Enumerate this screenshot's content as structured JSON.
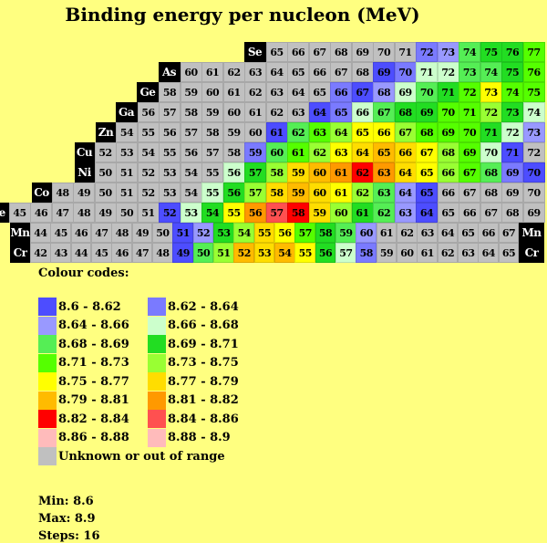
{
  "title": "Binding energy per nucleon (MeV)",
  "chart_data": {
    "type": "table",
    "rows": [
      {
        "element": "Se",
        "start": 65,
        "values": [
          65,
          66,
          67,
          68,
          69,
          70,
          71,
          72,
          73,
          74,
          75,
          76,
          77
        ],
        "codes": [
          16,
          16,
          16,
          16,
          16,
          16,
          16,
          1,
          2,
          4,
          5,
          5,
          6
        ]
      },
      {
        "element": "As",
        "start": 60,
        "values": [
          60,
          61,
          62,
          63,
          64,
          65,
          66,
          67,
          68,
          69,
          70,
          71,
          72,
          73,
          74,
          75,
          76
        ],
        "codes": [
          16,
          16,
          16,
          16,
          16,
          16,
          16,
          16,
          16,
          0,
          1,
          3,
          3,
          4,
          4,
          5,
          6
        ]
      },
      {
        "element": "Ge",
        "start": 58,
        "values": [
          58,
          59,
          60,
          61,
          62,
          63,
          64,
          65,
          66,
          67,
          68,
          69,
          70,
          71,
          72,
          73,
          74,
          75
        ],
        "codes": [
          16,
          16,
          16,
          16,
          16,
          16,
          16,
          16,
          1,
          0,
          2,
          3,
          4,
          5,
          6,
          8,
          6,
          6
        ]
      },
      {
        "element": "Ga",
        "start": 56,
        "values": [
          56,
          57,
          58,
          59,
          60,
          61,
          62,
          63,
          64,
          65,
          66,
          67,
          68,
          69,
          70,
          71,
          72,
          73,
          74
        ],
        "codes": [
          16,
          16,
          16,
          16,
          16,
          16,
          16,
          16,
          0,
          1,
          3,
          4,
          5,
          5,
          6,
          6,
          7,
          5,
          3
        ]
      },
      {
        "element": "Zn",
        "start": 54,
        "values": [
          54,
          55,
          56,
          57,
          58,
          59,
          60,
          61,
          62,
          63,
          64,
          65,
          66,
          67,
          68,
          69,
          70,
          71,
          72,
          73
        ],
        "codes": [
          16,
          16,
          16,
          16,
          16,
          16,
          16,
          0,
          4,
          6,
          7,
          8,
          8,
          7,
          6,
          6,
          6,
          5,
          3,
          2
        ]
      },
      {
        "element": "Cu",
        "start": 52,
        "values": [
          52,
          53,
          54,
          55,
          56,
          57,
          58,
          59,
          60,
          61,
          62,
          63,
          64,
          65,
          66,
          67,
          68,
          69,
          70,
          71,
          72
        ],
        "codes": [
          16,
          16,
          16,
          16,
          16,
          16,
          16,
          1,
          4,
          6,
          7,
          8,
          9,
          10,
          9,
          8,
          7,
          6,
          3,
          0,
          16
        ]
      },
      {
        "element": "Ni",
        "start": 50,
        "values": [
          50,
          51,
          52,
          53,
          54,
          55,
          56,
          57,
          58,
          59,
          60,
          61,
          62,
          63,
          64,
          65,
          66,
          67,
          68,
          69,
          70
        ],
        "codes": [
          16,
          16,
          16,
          16,
          16,
          16,
          3,
          5,
          7,
          9,
          10,
          11,
          12,
          11,
          9,
          8,
          7,
          6,
          4,
          1,
          0
        ]
      },
      {
        "element": "Co",
        "start": 48,
        "values": [
          48,
          49,
          50,
          51,
          52,
          53,
          54,
          55,
          56,
          57,
          58,
          59,
          60,
          61,
          62,
          63,
          64,
          65,
          66,
          67,
          68,
          69,
          70
        ],
        "codes": [
          16,
          16,
          16,
          16,
          16,
          16,
          16,
          3,
          5,
          7,
          9,
          10,
          9,
          8,
          7,
          4,
          2,
          0,
          16,
          16,
          16,
          16,
          16
        ]
      },
      {
        "element": "Fe",
        "start": 45,
        "values": [
          45,
          46,
          47,
          48,
          49,
          50,
          51,
          52,
          53,
          54,
          55,
          56,
          57,
          58,
          59,
          60,
          61,
          62,
          63,
          64,
          65,
          66,
          67,
          68,
          69
        ],
        "codes": [
          16,
          16,
          16,
          16,
          16,
          16,
          16,
          0,
          3,
          5,
          8,
          11,
          13,
          12,
          9,
          7,
          5,
          4,
          2,
          0,
          16,
          16,
          16,
          16,
          16
        ]
      },
      {
        "element": "Mn",
        "start": 44,
        "values": [
          44,
          45,
          46,
          47,
          48,
          49,
          50,
          51,
          52,
          53,
          54,
          55,
          56,
          57,
          58,
          59,
          60,
          61,
          62,
          63,
          64,
          65,
          66,
          67
        ],
        "codes": [
          16,
          16,
          16,
          16,
          16,
          16,
          16,
          0,
          2,
          5,
          7,
          9,
          8,
          6,
          5,
          4,
          2,
          16,
          16,
          16,
          16,
          16,
          16,
          16
        ],
        "right_label": "Mn"
      },
      {
        "element": "Cr",
        "start": 42,
        "values": [
          42,
          43,
          44,
          45,
          46,
          47,
          48,
          49,
          50,
          51,
          52,
          53,
          54,
          55,
          56,
          57,
          58,
          59,
          60,
          61,
          62,
          63,
          64,
          65
        ],
        "codes": [
          16,
          16,
          16,
          16,
          16,
          16,
          16,
          0,
          4,
          7,
          10,
          9,
          10,
          8,
          5,
          3,
          1,
          16,
          16,
          16,
          16,
          16,
          16,
          16
        ],
        "right_label": "Cr"
      }
    ]
  },
  "legend": {
    "title": "Colour codes:",
    "items": [
      {
        "label": "8.6 - 8.62",
        "color": "#4d4dff"
      },
      {
        "label": "8.62 - 8.64",
        "color": "#7a7aff"
      },
      {
        "label": "8.64 - 8.66",
        "color": "#9999ff"
      },
      {
        "label": "8.66 - 8.68",
        "color": "#ccffcc"
      },
      {
        "label": "8.68 - 8.69",
        "color": "#55ee55"
      },
      {
        "label": "8.69 - 8.71",
        "color": "#22dd22"
      },
      {
        "label": "8.71 - 8.73",
        "color": "#55ff00"
      },
      {
        "label": "8.73 - 8.75",
        "color": "#99ff33"
      },
      {
        "label": "8.75 - 8.77",
        "color": "#ffff00"
      },
      {
        "label": "8.77 - 8.79",
        "color": "#ffdd00"
      },
      {
        "label": "8.79 - 8.81",
        "color": "#ffbb00"
      },
      {
        "label": "8.81 - 8.82",
        "color": "#ff9900"
      },
      {
        "label": "8.82 - 8.84",
        "color": "#ff0000"
      },
      {
        "label": "8.84 - 8.86",
        "color": "#ff5050"
      },
      {
        "label": "8.86 - 8.88",
        "color": "#ffbbbb"
      },
      {
        "label": "8.88 - 8.9",
        "color": "#ffbbbb"
      }
    ],
    "unknown": {
      "label": "Unknown or out of range",
      "color": "#c0c0c0"
    }
  },
  "stats": {
    "min": "Min: 8.6",
    "max": "Max: 8.9",
    "steps": "Steps: 16"
  }
}
